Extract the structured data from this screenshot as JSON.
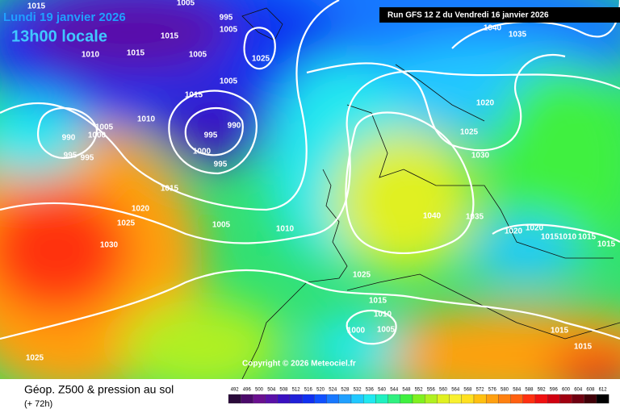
{
  "header": {
    "date": "Lundi 19 janvier 2026",
    "time": "13h00 locale",
    "run": "Run GFS 12 Z du Vendredi 16 janvier 2026"
  },
  "copyright": "Copyright © 2026 Meteociel.fr",
  "footer": {
    "title": "Géop. Z500 & pression au sol",
    "lead": "(+ 72h)"
  },
  "scale": {
    "values": [
      492,
      496,
      500,
      504,
      508,
      512,
      516,
      520,
      524,
      528,
      532,
      536,
      540,
      544,
      548,
      552,
      556,
      560,
      564,
      568,
      572,
      576,
      580,
      584,
      588,
      592,
      596,
      600,
      604,
      608,
      612
    ],
    "colors": [
      "#2a0a3a",
      "#4b0a6a",
      "#6a1090",
      "#5a10a8",
      "#3a10c0",
      "#2020d8",
      "#1030f0",
      "#1050ff",
      "#1878ff",
      "#20a0ff",
      "#20c8ff",
      "#20e8f0",
      "#20f0c0",
      "#30f080",
      "#40f040",
      "#80f020",
      "#b0f020",
      "#e0f020",
      "#f8f030",
      "#ffe020",
      "#ffc010",
      "#ffa010",
      "#ff8010",
      "#ff6010",
      "#ff3010",
      "#f01010",
      "#d00010",
      "#a00010",
      "#700010",
      "#400008",
      "#000000"
    ]
  },
  "isobars": {
    "labels": [
      "1015",
      "1005",
      "995",
      "1005",
      "1015",
      "1010",
      "1015",
      "1005",
      "1025",
      "1005",
      "1015",
      "1010",
      "995",
      "990",
      "1000",
      "995",
      "1005",
      "1000",
      "990",
      "995",
      "995",
      "1015",
      "1020",
      "1025",
      "1005",
      "1010",
      "1030",
      "1025",
      "1040",
      "1035",
      "1020",
      "1025",
      "1030",
      "1040",
      "1035",
      "1020",
      "1020",
      "1015",
      "1010",
      "1015",
      "1015",
      "1015",
      "1010",
      "1005",
      "1000",
      "1015",
      "1015",
      "1025"
    ]
  }
}
